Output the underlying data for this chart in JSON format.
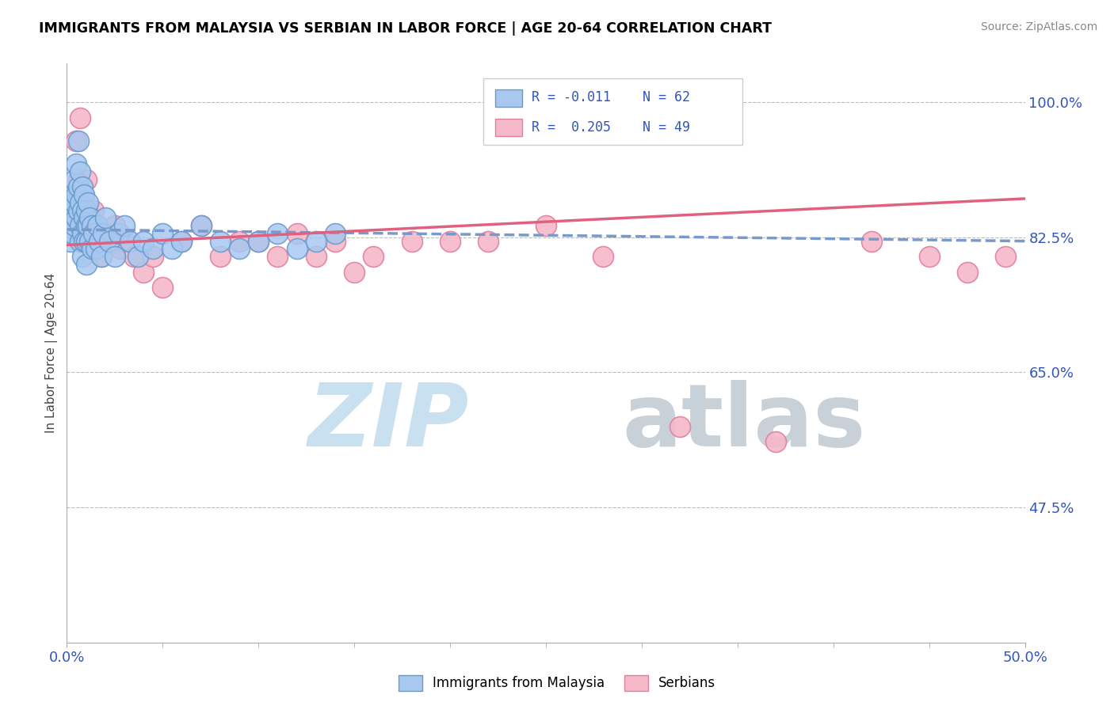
{
  "title": "IMMIGRANTS FROM MALAYSIA VS SERBIAN IN LABOR FORCE | AGE 20-64 CORRELATION CHART",
  "source": "Source: ZipAtlas.com",
  "ylabel": "In Labor Force | Age 20-64",
  "xlim": [
    0.0,
    0.5
  ],
  "ylim": [
    0.3,
    1.05
  ],
  "yticks": [
    0.475,
    0.65,
    0.825,
    1.0
  ],
  "ytick_labels": [
    "47.5%",
    "65.0%",
    "82.5%",
    "100.0%"
  ],
  "xtick_labels": [
    "0.0%",
    "50.0%"
  ],
  "xticks": [
    0.0,
    0.5
  ],
  "color_malaysia": "#A8C8F0",
  "color_malaysia_edge": "#6699CC",
  "color_serbian": "#F5B8C8",
  "color_serbian_edge": "#E080A0",
  "color_malaysia_line": "#7799CC",
  "color_serbian_line": "#E06080",
  "malaysia_x": [
    0.001,
    0.002,
    0.002,
    0.003,
    0.003,
    0.003,
    0.004,
    0.004,
    0.004,
    0.005,
    0.005,
    0.005,
    0.006,
    0.006,
    0.006,
    0.007,
    0.007,
    0.007,
    0.007,
    0.008,
    0.008,
    0.008,
    0.008,
    0.009,
    0.009,
    0.009,
    0.01,
    0.01,
    0.01,
    0.01,
    0.011,
    0.011,
    0.012,
    0.012,
    0.013,
    0.013,
    0.014,
    0.015,
    0.016,
    0.017,
    0.018,
    0.019,
    0.02,
    0.022,
    0.025,
    0.027,
    0.03,
    0.033,
    0.037,
    0.04,
    0.045,
    0.05,
    0.055,
    0.06,
    0.07,
    0.08,
    0.09,
    0.1,
    0.11,
    0.12,
    0.13,
    0.14
  ],
  "malaysia_y": [
    0.84,
    0.82,
    0.86,
    0.88,
    0.85,
    0.83,
    0.9,
    0.87,
    0.84,
    0.92,
    0.88,
    0.85,
    0.95,
    0.89,
    0.86,
    0.91,
    0.87,
    0.84,
    0.82,
    0.89,
    0.86,
    0.83,
    0.8,
    0.88,
    0.85,
    0.82,
    0.86,
    0.84,
    0.82,
    0.79,
    0.87,
    0.84,
    0.85,
    0.82,
    0.84,
    0.81,
    0.83,
    0.81,
    0.84,
    0.82,
    0.8,
    0.83,
    0.85,
    0.82,
    0.8,
    0.83,
    0.84,
    0.82,
    0.8,
    0.82,
    0.81,
    0.83,
    0.81,
    0.82,
    0.84,
    0.82,
    0.81,
    0.82,
    0.83,
    0.81,
    0.82,
    0.83
  ],
  "serbian_x": [
    0.003,
    0.004,
    0.005,
    0.006,
    0.007,
    0.007,
    0.008,
    0.008,
    0.009,
    0.01,
    0.01,
    0.011,
    0.012,
    0.013,
    0.014,
    0.015,
    0.016,
    0.018,
    0.02,
    0.022,
    0.025,
    0.028,
    0.03,
    0.035,
    0.04,
    0.045,
    0.05,
    0.06,
    0.07,
    0.08,
    0.09,
    0.1,
    0.11,
    0.12,
    0.13,
    0.14,
    0.15,
    0.16,
    0.18,
    0.2,
    0.22,
    0.25,
    0.28,
    0.32,
    0.37,
    0.42,
    0.45,
    0.47,
    0.49
  ],
  "serbian_y": [
    0.88,
    0.85,
    0.95,
    0.9,
    0.98,
    0.85,
    0.88,
    0.82,
    0.86,
    0.9,
    0.84,
    0.86,
    0.84,
    0.82,
    0.86,
    0.82,
    0.84,
    0.8,
    0.83,
    0.82,
    0.84,
    0.81,
    0.82,
    0.8,
    0.78,
    0.8,
    0.76,
    0.82,
    0.84,
    0.8,
    0.82,
    0.82,
    0.8,
    0.83,
    0.8,
    0.82,
    0.78,
    0.8,
    0.82,
    0.82,
    0.82,
    0.84,
    0.8,
    0.58,
    0.56,
    0.82,
    0.8,
    0.78,
    0.8
  ],
  "watermark_zip_color": "#C8E0F0",
  "watermark_atlas_color": "#C8D0D8",
  "bottom_legend_label1": "Immigrants from Malaysia",
  "bottom_legend_label2": "Serbians"
}
